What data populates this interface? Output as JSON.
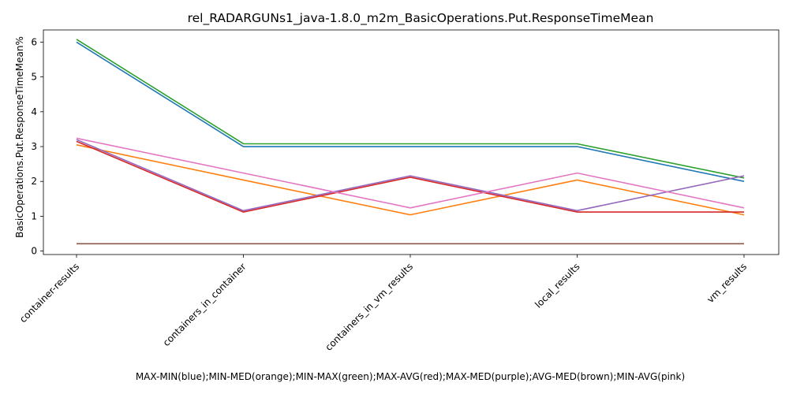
{
  "chart_data": {
    "type": "line",
    "title": "rel_RADARGUNs1_java-1.8.0_m2m_BasicOperations.Put.ResponseTimeMean",
    "xlabel": "MAX-MIN(blue);MIN-MED(orange);MIN-MAX(green);MAX-AVG(red);MAX-MED(purple);AVG-MED(brown);MIN-AVG(pink)",
    "ylabel": "BasicOperations.Put.ResponseTimeMean%",
    "categories": [
      "container-results",
      "containers_in_container",
      "containers_in_vm_results",
      "local_results",
      "vm_results"
    ],
    "ylim": [
      -0.1,
      6.35
    ],
    "yticks": [
      "0",
      "1",
      "2",
      "3",
      "4",
      "5",
      "6"
    ],
    "grid": false,
    "series": [
      {
        "color": "#1f77b4",
        "values": [
          6.0,
          3.0,
          3.0,
          3.0,
          2.0
        ]
      },
      {
        "color": "#ff7f0e",
        "values": [
          3.05,
          2.04,
          1.04,
          2.04,
          1.04
        ]
      },
      {
        "color": "#2ca02c",
        "values": [
          6.08,
          3.08,
          3.08,
          3.08,
          2.1
        ]
      },
      {
        "color": "#d62728",
        "values": [
          3.15,
          1.12,
          2.12,
          1.12,
          1.12
        ]
      },
      {
        "color": "#9467bd",
        "values": [
          3.2,
          1.16,
          2.16,
          1.16,
          2.16
        ]
      },
      {
        "color": "#8c564b",
        "values": [
          0.21,
          0.21,
          0.21,
          0.21,
          0.21
        ]
      },
      {
        "color": "#e377c2",
        "values": [
          3.24,
          2.24,
          1.24,
          2.24,
          1.24
        ]
      }
    ]
  }
}
